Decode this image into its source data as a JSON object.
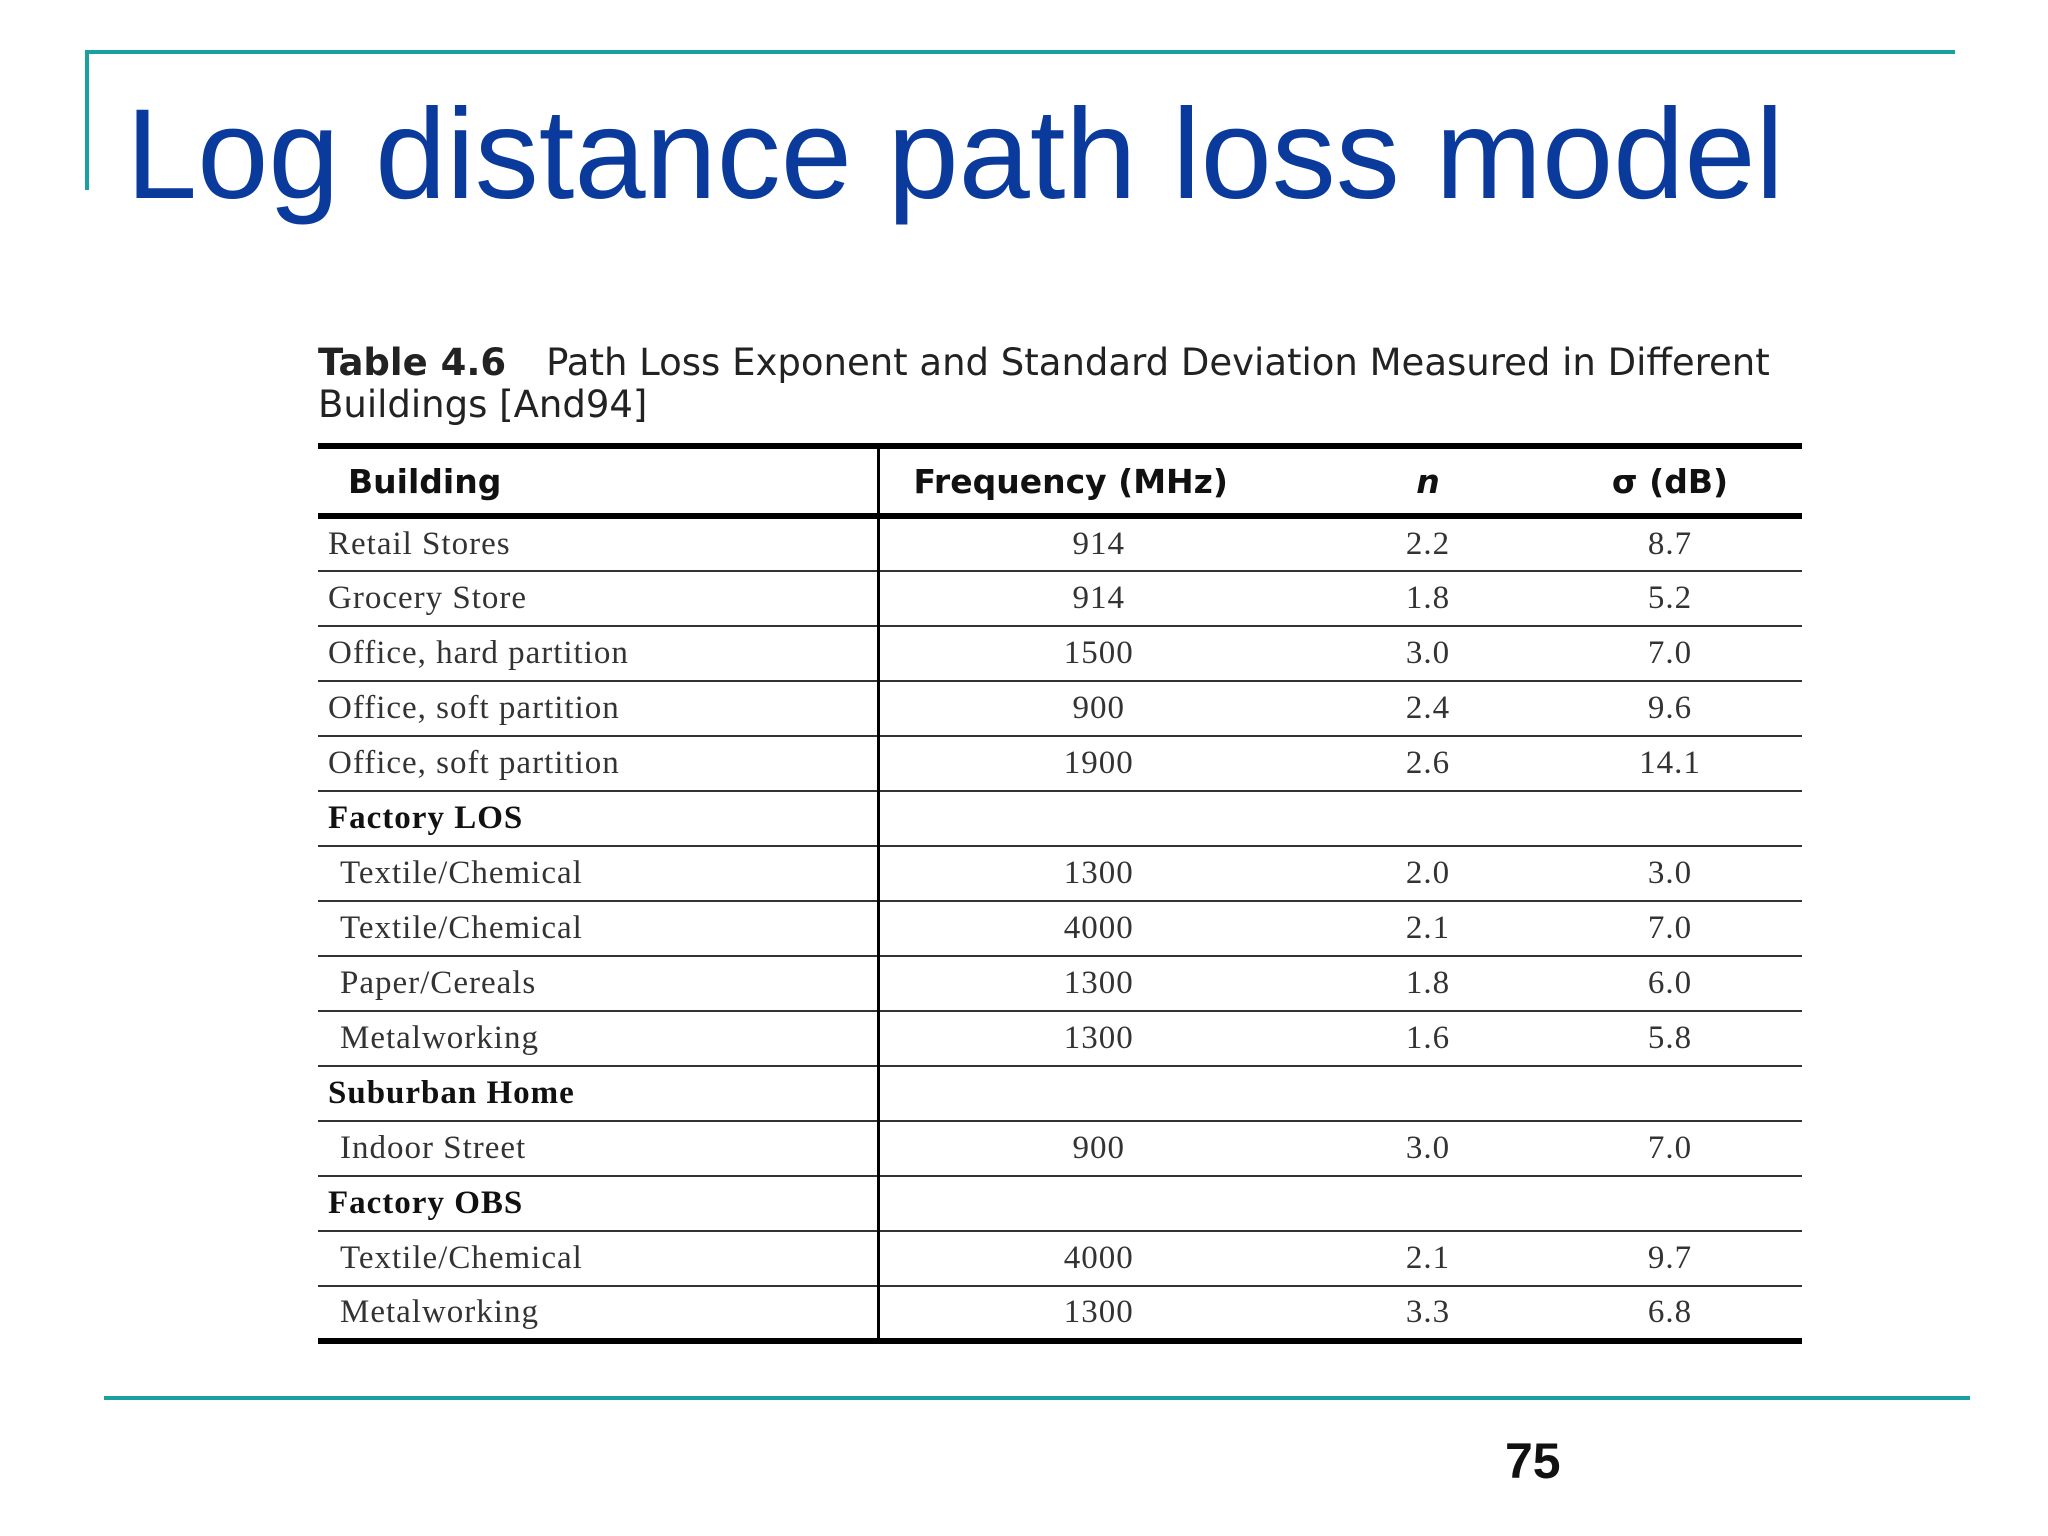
{
  "slide": {
    "title": "Log distance path loss model",
    "page_number": "75"
  },
  "table": {
    "caption_label": "Table 4.6",
    "caption_text": "Path Loss Exponent and Standard Deviation Measured in Different Buildings [And94]",
    "headers": {
      "building": "Building",
      "frequency": "Frequency (MHz)",
      "n": "n",
      "sigma": "σ (dB)"
    },
    "rows": [
      {
        "building": "Retail Stores",
        "frequency": "914",
        "n": "2.2",
        "sigma": "8.7"
      },
      {
        "building": "Grocery Store",
        "frequency": "914",
        "n": "1.8",
        "sigma": "5.2"
      },
      {
        "building": "Office, hard partition",
        "frequency": "1500",
        "n": "3.0",
        "sigma": "7.0"
      },
      {
        "building": "Office, soft partition",
        "frequency": "900",
        "n": "2.4",
        "sigma": "9.6"
      },
      {
        "building": "Office, soft partition",
        "frequency": "1900",
        "n": "2.6",
        "sigma": "14.1"
      },
      {
        "building": "Factory LOS",
        "frequency": "",
        "n": "",
        "sigma": ""
      },
      {
        "building": "Textile/Chemical",
        "frequency": "1300",
        "n": "2.0",
        "sigma": "3.0"
      },
      {
        "building": "Textile/Chemical",
        "frequency": "4000",
        "n": "2.1",
        "sigma": "7.0"
      },
      {
        "building": "Paper/Cereals",
        "frequency": "1300",
        "n": "1.8",
        "sigma": "6.0"
      },
      {
        "building": "Metalworking",
        "frequency": "1300",
        "n": "1.6",
        "sigma": "5.8"
      },
      {
        "building": "Suburban Home",
        "frequency": "",
        "n": "",
        "sigma": ""
      },
      {
        "building": "Indoor Street",
        "frequency": "900",
        "n": "3.0",
        "sigma": "7.0"
      },
      {
        "building": "Factory OBS",
        "frequency": "",
        "n": "",
        "sigma": ""
      },
      {
        "building": "Textile/Chemical",
        "frequency": "4000",
        "n": "2.1",
        "sigma": "9.7"
      },
      {
        "building": "Metalworking",
        "frequency": "1300",
        "n": "3.3",
        "sigma": "6.8"
      }
    ]
  }
}
